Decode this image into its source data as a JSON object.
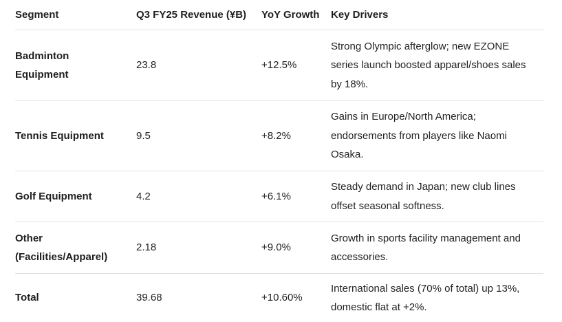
{
  "headers": {
    "segment": "Segment",
    "revenue": "Q3 FY25 Revenue (¥B)",
    "growth": "YoY Growth",
    "drivers": "Key Drivers"
  },
  "rows": [
    {
      "segment": "Badminton Equipment",
      "revenue": "23.8",
      "growth": "+12.5%",
      "drivers": "Strong Olympic afterglow; new EZONE series launch boosted apparel/shoes sales by 18%."
    },
    {
      "segment": "Tennis Equipment",
      "revenue": "9.5",
      "growth": "+8.2%",
      "drivers": "Gains in Europe/North America; endorsements from players like Naomi Osaka."
    },
    {
      "segment": "Golf Equipment",
      "revenue": "4.2",
      "growth": "+6.1%",
      "drivers": "Steady demand in Japan; new club lines offset seasonal softness."
    },
    {
      "segment": "Other (Facilities/Apparel)",
      "revenue": "2.18",
      "growth": "+9.0%",
      "drivers": "Growth in sports facility management and accessories."
    },
    {
      "segment": "Total",
      "revenue": "39.68",
      "growth": "+10.60%",
      "drivers": "International sales (70% of total) up 13%, domestic flat at +2%."
    }
  ]
}
